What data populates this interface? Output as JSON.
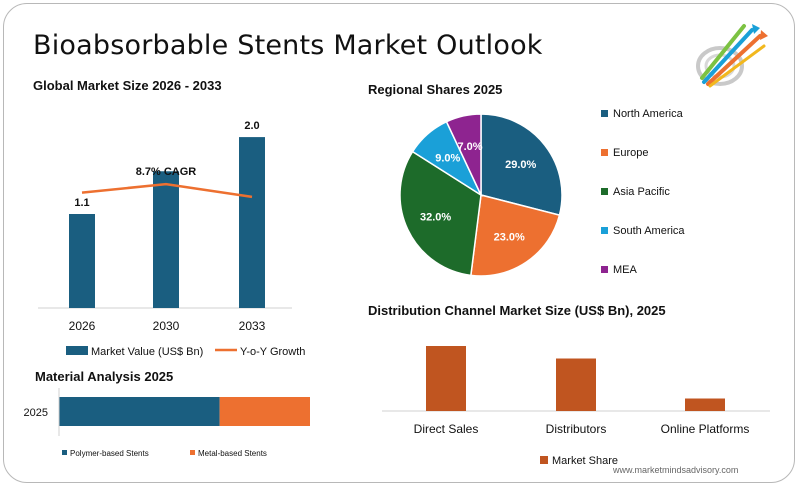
{
  "title": "Bioabsorbable Stents Market Outlook",
  "website": "www.marketmindsadvisory.com",
  "colors": {
    "blue": "#1a5e80",
    "orange": "#ed7030",
    "green": "#1d6b2a",
    "cyan": "#1aa0d8",
    "purple": "#8e2490",
    "rust": "#c05520"
  },
  "chart_data": [
    {
      "id": "global",
      "type": "bar",
      "title": "Global Market Size 2026 - 2033",
      "categories": [
        "2026",
        "2030",
        "2033"
      ],
      "series": [
        {
          "name": "Market Value (US$ Bn)",
          "values": [
            1.1,
            1.6,
            2.0
          ],
          "data_labels": [
            "1.1",
            "",
            "2.0"
          ]
        },
        {
          "name": "Y-o-Y Growth",
          "type": "line",
          "values": [
            1.35,
            1.45,
            1.3
          ]
        }
      ],
      "annotation": "8.7% CAGR",
      "ylim": [
        0,
        2.2
      ]
    },
    {
      "id": "regional",
      "type": "pie",
      "title": "Regional Shares 2025",
      "categories": [
        "North America",
        "Europe",
        "Asia Pacific",
        "South America",
        "MEA"
      ],
      "values": [
        29.0,
        23.0,
        32.0,
        9.0,
        7.0
      ],
      "labels": [
        "29.0%",
        "23.0%",
        "32.0%",
        "9.0%",
        "7.0%"
      ],
      "legend": "right"
    },
    {
      "id": "material",
      "type": "bar",
      "orientation": "horizontal-stacked",
      "title": "Material Analysis 2025",
      "categories": [
        "2025"
      ],
      "series": [
        {
          "name": "Polymer-based Stents",
          "values": [
            64
          ]
        },
        {
          "name": "Metal-based Stents",
          "values": [
            36
          ]
        }
      ]
    },
    {
      "id": "channel",
      "type": "bar",
      "title": "Distribution Channel Market Size (US$ Bn), 2025",
      "categories": [
        "Direct Sales",
        "Distributors",
        "Online Platforms"
      ],
      "series": [
        {
          "name": "Market Share",
          "values": [
            0.52,
            0.42,
            0.1
          ]
        }
      ],
      "ylim": [
        0,
        0.6
      ]
    }
  ]
}
